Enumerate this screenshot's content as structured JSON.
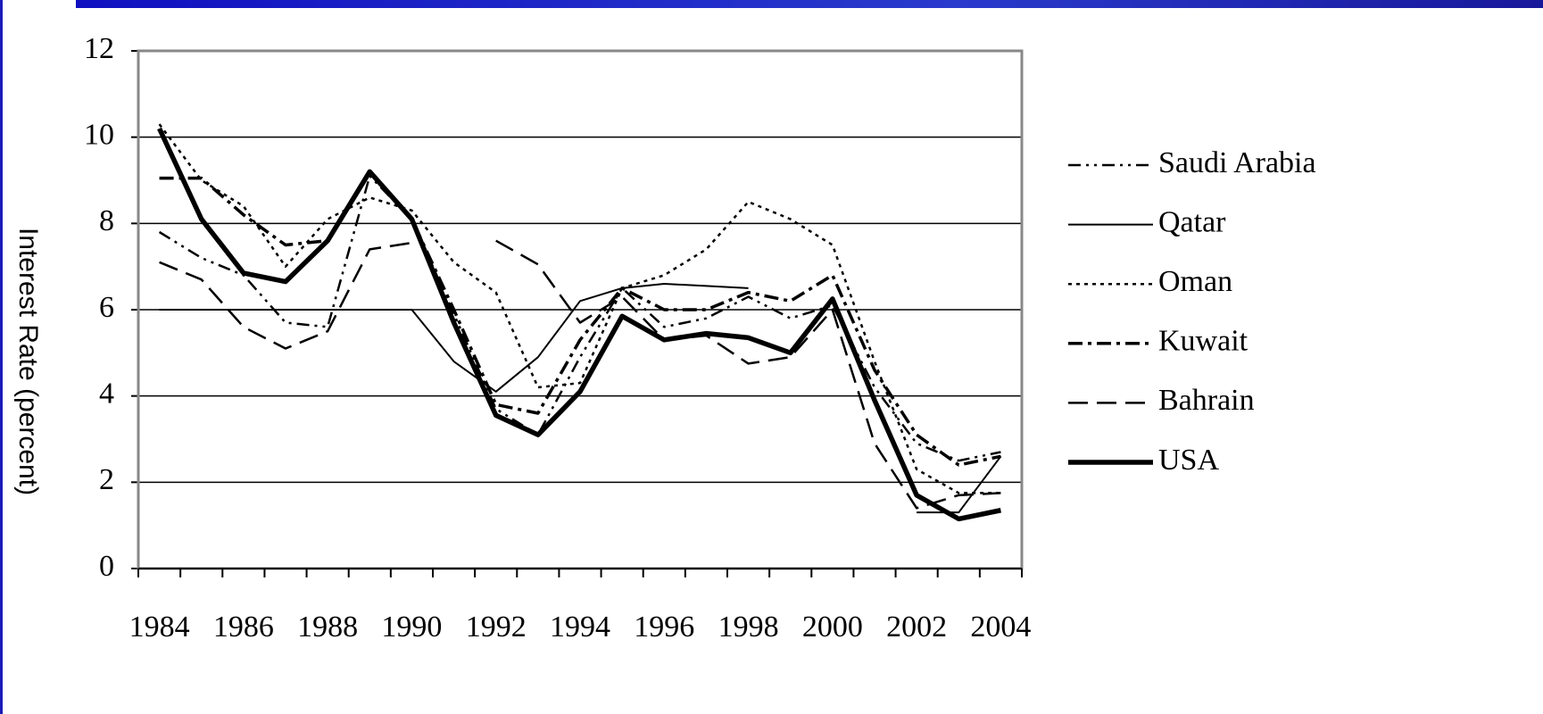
{
  "chart_data": {
    "type": "line",
    "y_label": "Interest Rate (percent)",
    "categories": [
      "1984",
      null,
      "1986",
      null,
      "1988",
      null,
      "1990",
      null,
      "1992",
      null,
      "1994",
      null,
      "1996",
      null,
      "1998",
      null,
      "2000",
      null,
      "2002",
      null,
      "2004"
    ],
    "ylim": [
      0,
      12
    ],
    "yticks": [
      0,
      2,
      4,
      6,
      8,
      10,
      12
    ],
    "grid": true,
    "series": [
      {
        "name": "Saudi Arabia",
        "color": "#000000",
        "dash": "14 6 3 6 3 6",
        "width": 2.5,
        "values": [
          7.8,
          7.2,
          6.8,
          5.7,
          5.6,
          9.1,
          8.1,
          5.9,
          3.7,
          3.1,
          4.9,
          6.5,
          5.6,
          5.8,
          6.3,
          5.8,
          6.1,
          4.2,
          2.9,
          2.5,
          2.7
        ]
      },
      {
        "name": "Qatar",
        "color": "#000000",
        "dash": "",
        "width": 2,
        "values": [
          6,
          6,
          6,
          6,
          6,
          6,
          6,
          4.8,
          4.1,
          4.9,
          6.2,
          6.5,
          6.6,
          6.55,
          6.5,
          null,
          null,
          null,
          1.3,
          1.3,
          2.6
        ]
      },
      {
        "name": "Oman",
        "color": "#000000",
        "dash": "4 5",
        "width": 2.5,
        "values": [
          10.3,
          9.0,
          8.4,
          7.0,
          8.1,
          8.6,
          8.3,
          7.1,
          6.4,
          4.2,
          4.3,
          6.5,
          6.8,
          7.4,
          8.5,
          8.1,
          7.5,
          4.8,
          2.3,
          1.75,
          1.75
        ]
      },
      {
        "name": "Kuwait",
        "color": "#000000",
        "dash": "16 6 4 6",
        "width": 3.5,
        "values": [
          9.05,
          9.05,
          8.2,
          7.5,
          7.6,
          9.2,
          8.1,
          6.0,
          3.8,
          3.6,
          5.3,
          6.5,
          6.0,
          6.0,
          6.4,
          6.2,
          6.8,
          4.6,
          3.1,
          2.4,
          2.6
        ]
      },
      {
        "name": "Bahrain",
        "color": "#000000",
        "dash": "22 10",
        "width": 2.5,
        "values": [
          7.1,
          6.7,
          5.6,
          5.1,
          5.5,
          7.4,
          7.55,
          null,
          7.6,
          7.05,
          5.7,
          6.3,
          5.3,
          5.4,
          4.75,
          4.9,
          6.0,
          2.9,
          1.4,
          1.7,
          1.75
        ]
      },
      {
        "name": "USA",
        "color": "#000000",
        "dash": "",
        "width": 5.5,
        "values": [
          10.2,
          8.1,
          6.85,
          6.65,
          7.6,
          9.2,
          8.1,
          5.7,
          3.55,
          3.1,
          4.1,
          5.85,
          5.3,
          5.45,
          5.35,
          5.0,
          6.25,
          3.9,
          1.7,
          1.15,
          1.35
        ]
      }
    ]
  }
}
